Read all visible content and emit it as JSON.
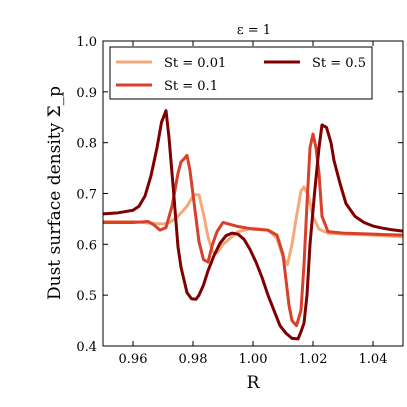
{
  "chart_data": {
    "type": "line",
    "title": "ε = 1",
    "xlabel": "R",
    "ylabel": "Dust surface density Σ_p",
    "xlim": [
      0.95,
      1.05
    ],
    "ylim": [
      0.4,
      1.0
    ],
    "xticks": [
      "0.96",
      "0.98",
      "1.00",
      "1.02",
      "1.04"
    ],
    "xtick_values": [
      0.96,
      0.98,
      1.0,
      1.02,
      1.04
    ],
    "yticks": [
      "0.4",
      "0.5",
      "0.6",
      "0.7",
      "0.8",
      "0.9",
      "1.0"
    ],
    "ytick_values": [
      0.4,
      0.5,
      0.6,
      0.7,
      0.8,
      0.9,
      1.0
    ],
    "grid": false,
    "legend_position": "top",
    "series": [
      {
        "name": "St = 0.01",
        "color": "#f4a97a",
        "x": [
          0.95,
          0.96,
          0.965,
          0.97,
          0.972,
          0.975,
          0.978,
          0.98,
          0.981,
          0.982,
          0.9835,
          0.985,
          0.9865,
          0.988,
          0.99,
          0.995,
          1.0,
          1.005,
          1.008,
          1.01,
          1.0115,
          1.013,
          1.0145,
          1.016,
          1.017,
          1.0185,
          1.02,
          1.022,
          1.025,
          1.03,
          1.04,
          1.05
        ],
        "y": [
          0.645,
          0.645,
          0.642,
          0.64,
          0.642,
          0.655,
          0.675,
          0.695,
          0.698,
          0.697,
          0.66,
          0.615,
          0.585,
          0.583,
          0.6,
          0.625,
          0.632,
          0.628,
          0.612,
          0.575,
          0.56,
          0.6,
          0.655,
          0.705,
          0.713,
          0.695,
          0.655,
          0.63,
          0.622,
          0.62,
          0.618,
          0.615
        ]
      },
      {
        "name": "St = 0.1",
        "color": "#d9402b",
        "x": [
          0.95,
          0.96,
          0.965,
          0.967,
          0.969,
          0.971,
          0.973,
          0.975,
          0.976,
          0.977,
          0.978,
          0.979,
          0.9805,
          0.982,
          0.9835,
          0.985,
          0.9865,
          0.988,
          0.99,
          0.995,
          1.0,
          1.005,
          1.008,
          1.01,
          1.011,
          1.012,
          1.013,
          1.0145,
          1.016,
          1.017,
          1.018,
          1.019,
          1.02,
          1.021,
          1.022,
          1.023,
          1.025,
          1.03,
          1.04,
          1.05
        ],
        "y": [
          0.643,
          0.643,
          0.645,
          0.638,
          0.628,
          0.633,
          0.675,
          0.74,
          0.762,
          0.768,
          0.775,
          0.745,
          0.675,
          0.605,
          0.57,
          0.565,
          0.6,
          0.625,
          0.643,
          0.635,
          0.63,
          0.628,
          0.618,
          0.58,
          0.53,
          0.48,
          0.45,
          0.44,
          0.47,
          0.56,
          0.68,
          0.79,
          0.817,
          0.79,
          0.74,
          0.655,
          0.625,
          0.622,
          0.62,
          0.618
        ]
      },
      {
        "name": "St = 0.5",
        "color": "#7f0000",
        "x": [
          0.95,
          0.955,
          0.96,
          0.962,
          0.964,
          0.966,
          0.968,
          0.9695,
          0.971,
          0.972,
          0.9735,
          0.975,
          0.976,
          0.977,
          0.978,
          0.9795,
          0.981,
          0.982,
          0.9835,
          0.985,
          0.987,
          0.989,
          0.991,
          0.993,
          0.995,
          0.997,
          0.999,
          1.001,
          1.003,
          1.005,
          1.007,
          1.009,
          1.011,
          1.013,
          1.015,
          1.016,
          1.017,
          1.018,
          1.019,
          1.0205,
          1.022,
          1.023,
          1.0245,
          1.026,
          1.027,
          1.029,
          1.031,
          1.034,
          1.037,
          1.04,
          1.043,
          1.046,
          1.05
        ],
        "y": [
          0.66,
          0.662,
          0.667,
          0.675,
          0.695,
          0.735,
          0.79,
          0.84,
          0.863,
          0.81,
          0.705,
          0.595,
          0.555,
          0.53,
          0.505,
          0.493,
          0.492,
          0.5,
          0.52,
          0.548,
          0.578,
          0.602,
          0.617,
          0.622,
          0.62,
          0.61,
          0.59,
          0.565,
          0.535,
          0.5,
          0.47,
          0.44,
          0.425,
          0.415,
          0.414,
          0.428,
          0.445,
          0.5,
          0.6,
          0.7,
          0.79,
          0.835,
          0.83,
          0.8,
          0.765,
          0.72,
          0.68,
          0.655,
          0.643,
          0.636,
          0.632,
          0.629,
          0.626
        ]
      }
    ]
  }
}
